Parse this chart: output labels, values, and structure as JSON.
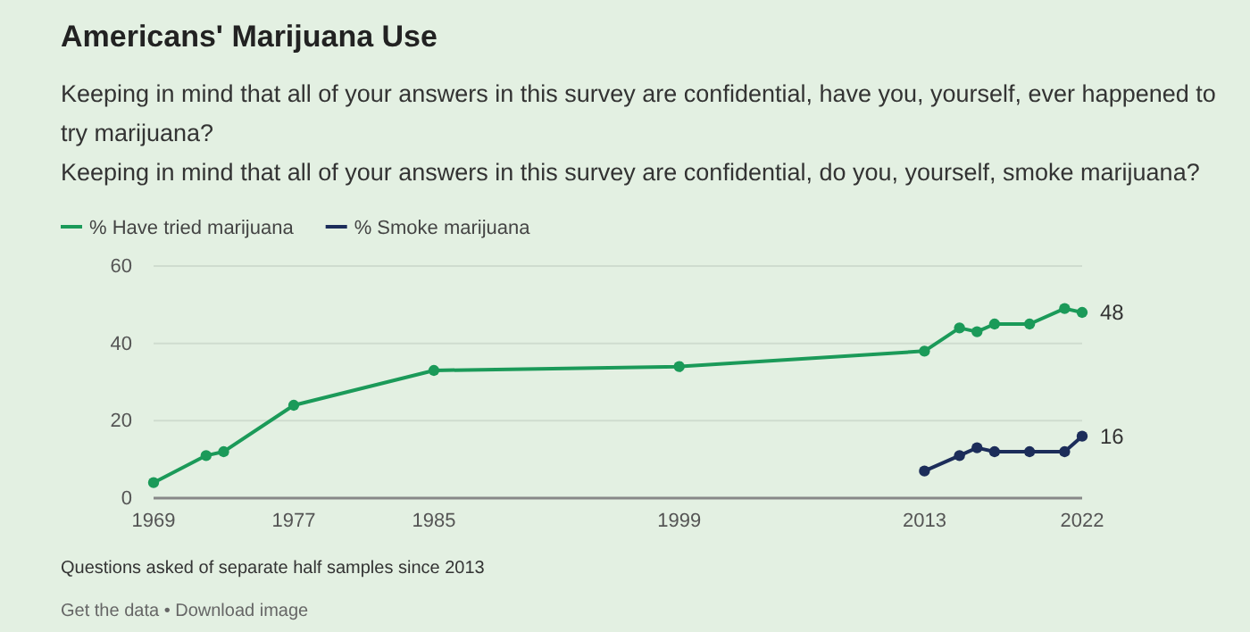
{
  "chart_data": {
    "type": "line",
    "title": "Americans' Marijuana Use",
    "subtitle": "Keeping in mind that all of your answers in this survey are confidential, have you, yourself, ever happened to try marijuana?\nKeeping in mind that all of your answers in this survey are confidential, do you, yourself, smoke marijuana?",
    "x": [
      1969,
      1972,
      1973,
      1977,
      1985,
      1999,
      2013,
      2015,
      2016,
      2017,
      2019,
      2021,
      2022
    ],
    "series": [
      {
        "name": "% Have tried marijuana",
        "color": "#1b9a59",
        "values": [
          4,
          11,
          12,
          24,
          33,
          34,
          38,
          44,
          43,
          45,
          45,
          49,
          48
        ],
        "value_labels": [
          null,
          null,
          null,
          null,
          null,
          null,
          null,
          null,
          null,
          null,
          null,
          null,
          "48"
        ]
      },
      {
        "name": "% Smoke marijuana",
        "color": "#1c2d5a",
        "x": [
          2013,
          2015,
          2016,
          2017,
          2019,
          2021,
          2022
        ],
        "values": [
          7,
          11,
          13,
          12,
          12,
          12,
          16
        ],
        "value_labels": [
          null,
          null,
          null,
          null,
          null,
          null,
          "16"
        ]
      }
    ],
    "xlim": [
      1969,
      2022
    ],
    "xticks": [
      1969,
      1977,
      1985,
      1999,
      2013,
      2022
    ],
    "ylim": [
      0,
      60
    ],
    "yticks": [
      0,
      20,
      40,
      60
    ],
    "grid": "y",
    "legend": "top left",
    "marker": "circle",
    "annotations": [
      "Questions asked of separate half samples since 2013",
      "Get the data • Download image"
    ]
  }
}
